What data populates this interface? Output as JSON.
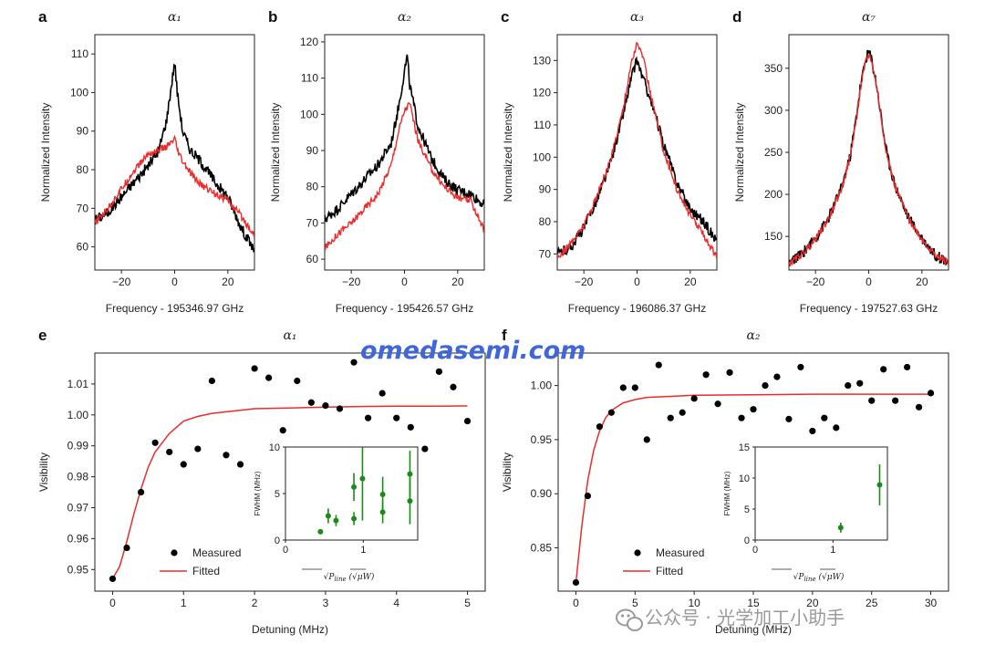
{
  "watermark": {
    "site": "omedasemi.com",
    "wechat": "公众号 · 光学加工小助手",
    "wechat_icon": "wechat-icon"
  },
  "colors": {
    "measured_trace": "#000000",
    "fit_trace": "#ee2b2b",
    "points": "#000000",
    "inset_points": "#1a8a1a"
  },
  "chart_data": [
    {
      "id": "a",
      "panel_label": "a",
      "type": "line",
      "title": "α₁",
      "xlabel": "Frequency - 195346.97 GHz",
      "ylabel": "Normalized Intensity",
      "xlim": [
        -30,
        30
      ],
      "ylim": [
        54,
        115
      ],
      "xticks": [
        -20,
        0,
        20
      ],
      "yticks": [
        60,
        70,
        80,
        90,
        100,
        110
      ],
      "series": [
        {
          "color": "#000000",
          "x": [
            -30,
            -25,
            -20,
            -15,
            -10,
            -6,
            -3,
            -1,
            0,
            1,
            3,
            6,
            10,
            15,
            20,
            25,
            30
          ],
          "y": [
            67,
            69,
            73,
            77,
            81,
            85,
            93,
            103,
            108,
            100,
            90,
            85,
            82,
            77,
            73,
            65,
            59
          ]
        },
        {
          "color": "#ee2b2b",
          "x": [
            -30,
            -25,
            -20,
            -15,
            -10,
            -6,
            -3,
            -1,
            0,
            1,
            3,
            6,
            10,
            15,
            20,
            25,
            30
          ],
          "y": [
            66,
            70,
            75,
            80,
            84,
            85,
            86,
            87,
            88,
            85,
            82,
            79,
            76,
            74,
            72,
            68,
            63
          ]
        }
      ]
    },
    {
      "id": "b",
      "panel_label": "b",
      "type": "line",
      "title": "α₂",
      "xlabel": "Frequency - 195426.57 GHz",
      "ylabel": "Normalized Intensity",
      "xlim": [
        -30,
        30
      ],
      "ylim": [
        57,
        122
      ],
      "xticks": [
        -20,
        0,
        20
      ],
      "yticks": [
        60,
        70,
        80,
        90,
        100,
        110,
        120
      ],
      "series": [
        {
          "color": "#000000",
          "x": [
            -30,
            -25,
            -20,
            -15,
            -10,
            -5,
            -2,
            0,
            1,
            2,
            5,
            10,
            15,
            20,
            25,
            30
          ],
          "y": [
            71,
            74,
            78,
            82,
            86,
            92,
            103,
            112,
            116,
            108,
            97,
            88,
            82,
            79,
            78,
            75
          ]
        },
        {
          "color": "#ee2b2b",
          "x": [
            -30,
            -25,
            -20,
            -15,
            -10,
            -5,
            -2,
            0,
            2,
            5,
            10,
            15,
            20,
            25,
            30
          ],
          "y": [
            63,
            67,
            70,
            74,
            78,
            86,
            96,
            101,
            103,
            93,
            85,
            80,
            77,
            76,
            68
          ]
        }
      ]
    },
    {
      "id": "c",
      "panel_label": "c",
      "type": "line",
      "title": "α₃",
      "xlabel": "Frequency - 196086.37 GHz",
      "ylabel": "Normalized Intensity",
      "xlim": [
        -30,
        30
      ],
      "ylim": [
        65,
        138
      ],
      "xticks": [
        -20,
        0,
        20
      ],
      "yticks": [
        70,
        80,
        90,
        100,
        110,
        120,
        130
      ],
      "series": [
        {
          "color": "#000000",
          "x": [
            -30,
            -25,
            -20,
            -15,
            -10,
            -5,
            -2,
            0,
            2,
            5,
            10,
            15,
            20,
            25,
            30
          ],
          "y": [
            70,
            72,
            78,
            87,
            98,
            114,
            125,
            130,
            125,
            118,
            104,
            92,
            84,
            80,
            74
          ]
        },
        {
          "color": "#ee2b2b",
          "x": [
            -30,
            -25,
            -20,
            -15,
            -10,
            -5,
            -2,
            0,
            2,
            5,
            10,
            15,
            20,
            25,
            30
          ],
          "y": [
            69,
            73,
            79,
            88,
            99,
            116,
            130,
            135,
            132,
            120,
            102,
            90,
            82,
            76,
            69
          ]
        }
      ]
    },
    {
      "id": "d",
      "panel_label": "d",
      "type": "line",
      "title": "α₇",
      "xlabel": "Frequency - 197527.63 GHz",
      "ylabel": "Normalized Intensity",
      "xlim": [
        -30,
        30
      ],
      "ylim": [
        110,
        390
      ],
      "xticks": [
        -20,
        0,
        20
      ],
      "yticks": [
        150,
        200,
        250,
        300,
        350
      ],
      "series": [
        {
          "color": "#000000",
          "x": [
            -30,
            -25,
            -20,
            -15,
            -10,
            -7,
            -5,
            -3,
            -1,
            0,
            1,
            3,
            5,
            7,
            10,
            15,
            20,
            25,
            30
          ],
          "y": [
            118,
            130,
            148,
            172,
            210,
            245,
            285,
            330,
            362,
            370,
            362,
            330,
            285,
            245,
            210,
            172,
            148,
            128,
            120
          ]
        },
        {
          "color": "#ee2b2b",
          "x": [
            -30,
            -25,
            -20,
            -15,
            -10,
            -7,
            -5,
            -3,
            -1,
            0,
            1,
            3,
            5,
            7,
            10,
            15,
            20,
            25,
            30
          ],
          "y": [
            117,
            129,
            147,
            171,
            209,
            244,
            283,
            328,
            360,
            366,
            360,
            328,
            283,
            244,
            209,
            171,
            147,
            127,
            119
          ]
        }
      ]
    },
    {
      "id": "e",
      "panel_label": "e",
      "type": "scatter",
      "title": "α₁",
      "xlabel": "Detuning (MHz)",
      "ylabel": "Visibility",
      "xlim": [
        -0.25,
        5.25
      ],
      "ylim": [
        0.943,
        1.02
      ],
      "xticks": [
        0,
        1,
        2,
        3,
        4,
        5
      ],
      "yticks": [
        0.95,
        0.96,
        0.97,
        0.98,
        0.99,
        1.0,
        1.01
      ],
      "ytick_labels": [
        "0.95",
        "0.96",
        "0.97",
        "0.98",
        "0.99",
        "1.00",
        "1.01"
      ],
      "legend": {
        "position": "lower-left",
        "entries": [
          "Measured",
          "Fitted"
        ]
      },
      "measured": {
        "x": [
          0.0,
          0.2,
          0.4,
          0.6,
          0.8,
          1.0,
          1.2,
          1.4,
          1.6,
          1.8,
          2.0,
          2.2,
          2.4,
          2.6,
          2.8,
          3.0,
          3.2,
          3.4,
          3.6,
          3.8,
          4.0,
          4.2,
          4.4,
          4.6,
          4.8,
          5.0
        ],
        "y": [
          0.947,
          0.957,
          0.975,
          0.991,
          0.988,
          0.984,
          0.989,
          1.011,
          0.987,
          0.984,
          1.015,
          1.012,
          0.995,
          1.011,
          1.004,
          1.003,
          1.002,
          1.017,
          0.999,
          1.007,
          0.999,
          0.996,
          0.989,
          1.014,
          1.009,
          0.998
        ]
      },
      "fitted": {
        "x": [
          0.0,
          0.1,
          0.2,
          0.3,
          0.4,
          0.5,
          0.6,
          0.7,
          0.8,
          0.9,
          1.0,
          1.2,
          1.4,
          1.6,
          1.8,
          2.0,
          2.5,
          3.0,
          3.5,
          4.0,
          4.5,
          5.0
        ],
        "y": [
          0.947,
          0.951,
          0.959,
          0.968,
          0.976,
          0.983,
          0.988,
          0.991,
          0.994,
          0.996,
          0.998,
          0.9995,
          1.0005,
          1.001,
          1.0015,
          1.002,
          1.0022,
          1.0025,
          1.0027,
          1.0028,
          1.0028,
          1.0029
        ]
      },
      "inset": {
        "xlabel_left": "√P",
        "xlabel_sub": "line",
        "xlabel_right": " (√μW)",
        "ylabel": "FWHM (MHz)",
        "xlim": [
          0,
          1.7
        ],
        "ylim": [
          0,
          10
        ],
        "xticks": [
          0,
          1
        ],
        "yticks": [
          0,
          5,
          10
        ],
        "points": [
          {
            "x": 0.45,
            "y": 0.9,
            "err": 0.25
          },
          {
            "x": 0.55,
            "y": 2.6,
            "err": 0.8
          },
          {
            "x": 0.65,
            "y": 2.1,
            "err": 0.6
          },
          {
            "x": 0.88,
            "y": 5.7,
            "err": 1.5
          },
          {
            "x": 0.88,
            "y": 2.3,
            "err": 0.7
          },
          {
            "x": 0.99,
            "y": 6.6,
            "err": 4.5
          },
          {
            "x": 1.25,
            "y": 4.9,
            "err": 1.9
          },
          {
            "x": 1.25,
            "y": 3.0,
            "err": 1.2
          },
          {
            "x": 1.6,
            "y": 7.1,
            "err": 2.5
          },
          {
            "x": 1.6,
            "y": 4.2,
            "err": 2.5
          }
        ]
      }
    },
    {
      "id": "f",
      "panel_label": "f",
      "type": "scatter",
      "title": "α₂",
      "xlabel": "Detuning (MHz)",
      "ylabel": "Visibility",
      "xlim": [
        -1.5,
        31.5
      ],
      "ylim": [
        0.81,
        1.03
      ],
      "xticks": [
        0,
        5,
        10,
        15,
        20,
        25,
        30
      ],
      "yticks": [
        0.85,
        0.9,
        0.95,
        1.0
      ],
      "ytick_labels": [
        "0.85",
        "0.90",
        "0.95",
        "1.00"
      ],
      "legend": {
        "position": "lower-left",
        "entries": [
          "Measured",
          "Fitted"
        ]
      },
      "measured": {
        "x": [
          0,
          1,
          2,
          3,
          4,
          5,
          6,
          7,
          8,
          9,
          10,
          11,
          12,
          13,
          14,
          15,
          16,
          17,
          18,
          19,
          20,
          21,
          22,
          23,
          24,
          25,
          26,
          27,
          28,
          29,
          30
        ],
        "y": [
          0.818,
          0.898,
          0.962,
          0.975,
          0.998,
          0.998,
          0.95,
          1.019,
          0.97,
          0.975,
          0.988,
          1.01,
          0.983,
          1.012,
          0.97,
          0.978,
          1.0,
          1.008,
          0.969,
          1.017,
          0.958,
          0.97,
          0.961,
          1.0,
          1.002,
          0.986,
          1.015,
          0.986,
          1.017,
          0.98,
          0.993
        ]
      },
      "fitted": {
        "x": [
          0,
          0.5,
          1,
          1.5,
          2,
          2.5,
          3,
          4,
          5,
          6,
          8,
          10,
          15,
          20,
          25,
          30
        ],
        "y": [
          0.818,
          0.87,
          0.912,
          0.94,
          0.958,
          0.97,
          0.977,
          0.984,
          0.987,
          0.989,
          0.99,
          0.991,
          0.9915,
          0.992,
          0.992,
          0.992
        ]
      },
      "inset": {
        "xlabel_left": "√P",
        "xlabel_sub": "line",
        "xlabel_right": " (√μW)",
        "ylabel": "FWHM (MHz)",
        "xlim": [
          0,
          1.7
        ],
        "ylim": [
          0,
          15
        ],
        "xticks": [
          0,
          1
        ],
        "yticks": [
          0,
          5,
          10,
          15
        ],
        "points": [
          {
            "x": 1.1,
            "y": 2.0,
            "err": 0.8
          },
          {
            "x": 1.6,
            "y": 8.9,
            "err": 3.3
          }
        ]
      }
    }
  ]
}
